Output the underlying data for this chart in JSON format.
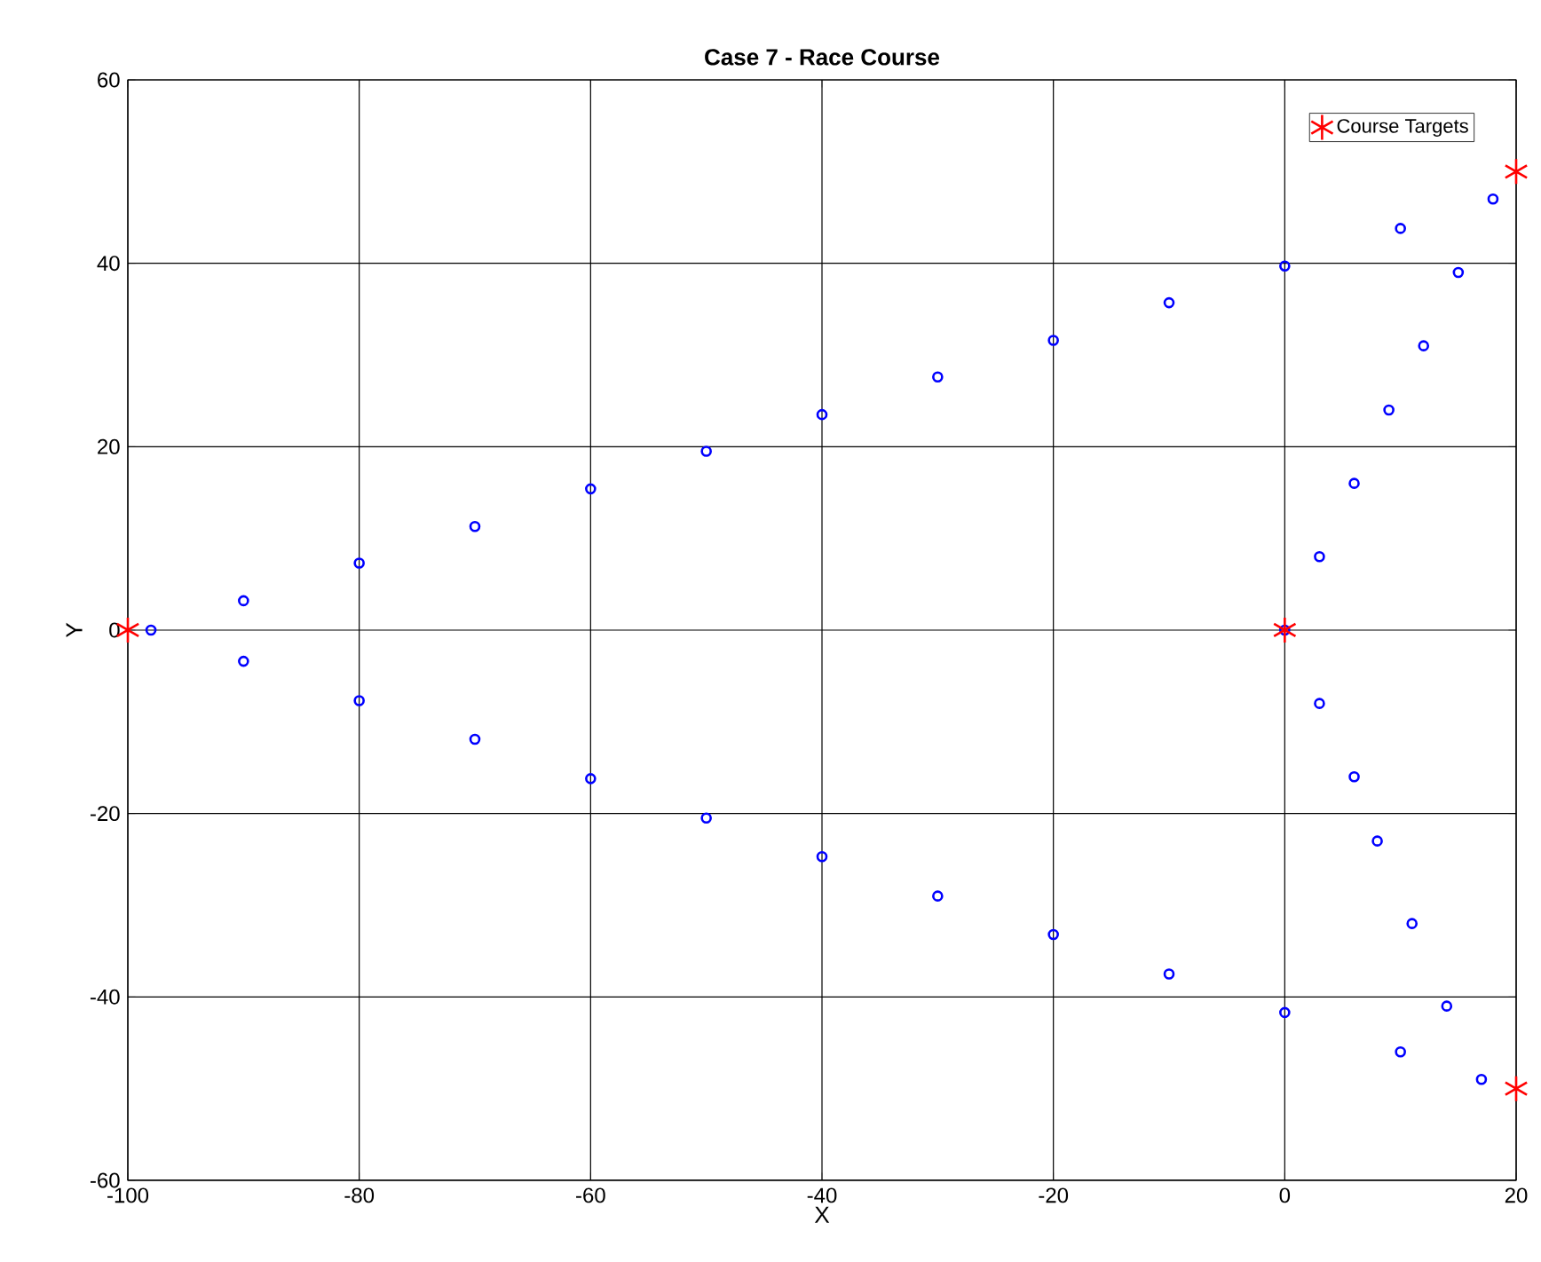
{
  "chart_data": {
    "type": "scatter",
    "title": "Case 7 - Race Course",
    "xlabel": "X",
    "ylabel": "Y",
    "xlim": [
      -100,
      20
    ],
    "ylim": [
      -60,
      60
    ],
    "xticks": [
      -100,
      -80,
      -60,
      -40,
      -20,
      0,
      20
    ],
    "yticks": [
      -60,
      -40,
      -20,
      0,
      20,
      40,
      60
    ],
    "grid": true,
    "legend": "top right",
    "series": [
      {
        "color": "#0000ff",
        "marker": "circle",
        "x": [
          0,
          3,
          6,
          9,
          12,
          15,
          18,
          10,
          0,
          -10,
          -20,
          -30,
          -40,
          -50,
          -60,
          -70,
          -80,
          -90,
          -98,
          -90,
          -80,
          -70,
          -60,
          -50,
          -40,
          -30,
          -20,
          -10,
          0,
          10,
          17,
          14,
          11,
          8,
          6,
          3
        ],
        "values": [
          0,
          8,
          16,
          24,
          31,
          39,
          47,
          43.8,
          39.7,
          35.7,
          31.6,
          27.6,
          23.5,
          19.5,
          15.4,
          11.3,
          7.3,
          3.2,
          0,
          -3.4,
          -7.7,
          -11.9,
          -16.2,
          -20.5,
          -24.7,
          -29,
          -33.2,
          -37.5,
          -41.7,
          -46,
          -49,
          -41,
          -32,
          -23,
          -16,
          -8
        ]
      },
      {
        "name": "Course Targets",
        "color": "#ff0000",
        "marker": "cross",
        "x": [
          0,
          20,
          -100,
          20
        ],
        "values": [
          0,
          50,
          0,
          -50
        ]
      }
    ]
  }
}
